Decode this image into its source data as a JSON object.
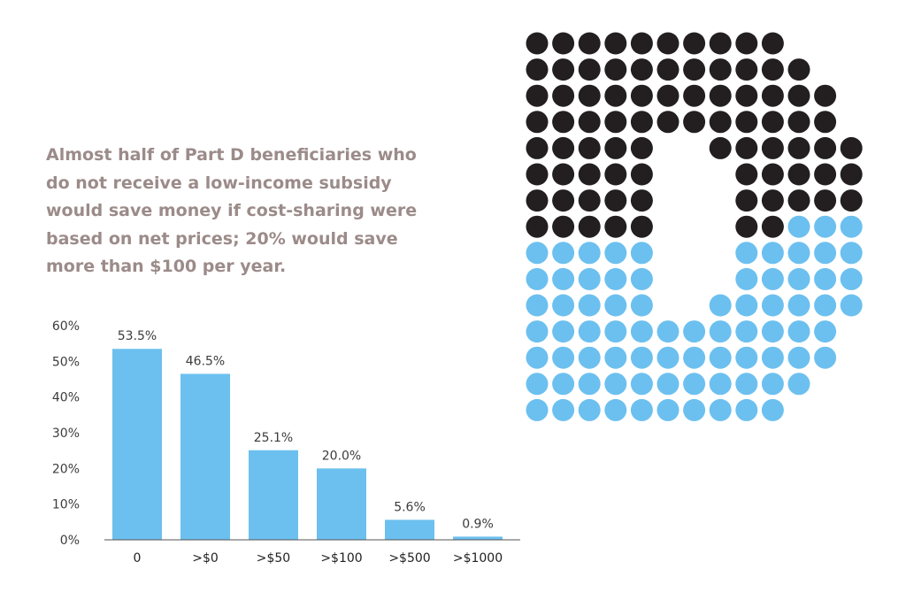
{
  "headline": "Almost half of Part D beneficiaries who do not receive a low-income subsidy would save money if cost-sharing were based on net prices; 20% would save more than $100 per year.",
  "colors": {
    "bar": "#6cc0ef",
    "headline": "#9b8b89",
    "dot_dark": "#231f20",
    "dot_light": "#6cc0ef",
    "axis_text": "#3c3c3c"
  },
  "chart_data": {
    "type": "bar",
    "title": "",
    "xlabel": "",
    "ylabel": "",
    "categories": [
      "0",
      ">$0",
      ">$50",
      ">$100",
      ">$500",
      ">$1000"
    ],
    "values": [
      53.5,
      46.5,
      25.1,
      20.0,
      5.6,
      0.9
    ],
    "value_labels": [
      "53.5%",
      "46.5%",
      "25.1%",
      "20.0%",
      "5.6%",
      "0.9%"
    ],
    "ylim": [
      0,
      60
    ],
    "yticks": [
      0,
      10,
      20,
      30,
      40,
      50,
      60
    ],
    "ytick_labels": [
      "0%",
      "10%",
      "20%",
      "30%",
      "40%",
      "50%",
      "60%"
    ],
    "grid": false,
    "legend": "none"
  },
  "dot_graphic": {
    "description_icon": "letter-d-dot-matrix-icon",
    "rows": [
      "DDDDDDDDDD..",
      "DDDDDDDDDDD.",
      "DDDDDDDDDDDD",
      "DDDDDDDDDDDD",
      "DDDDD..DDDDDD",
      "DDDDD...DDDDD",
      "DDDDD...DDDDD",
      "DDDDD...DDLLL",
      "LLLLL...LLLLL",
      "LLLLL...LLLLL",
      "LLLLL..LLLLLL",
      "LLLLLLLLLLLL",
      "LLLLLLLLLLLL",
      "LLLLLLLLLLL.",
      "LLLLLLLLLL.."
    ]
  }
}
